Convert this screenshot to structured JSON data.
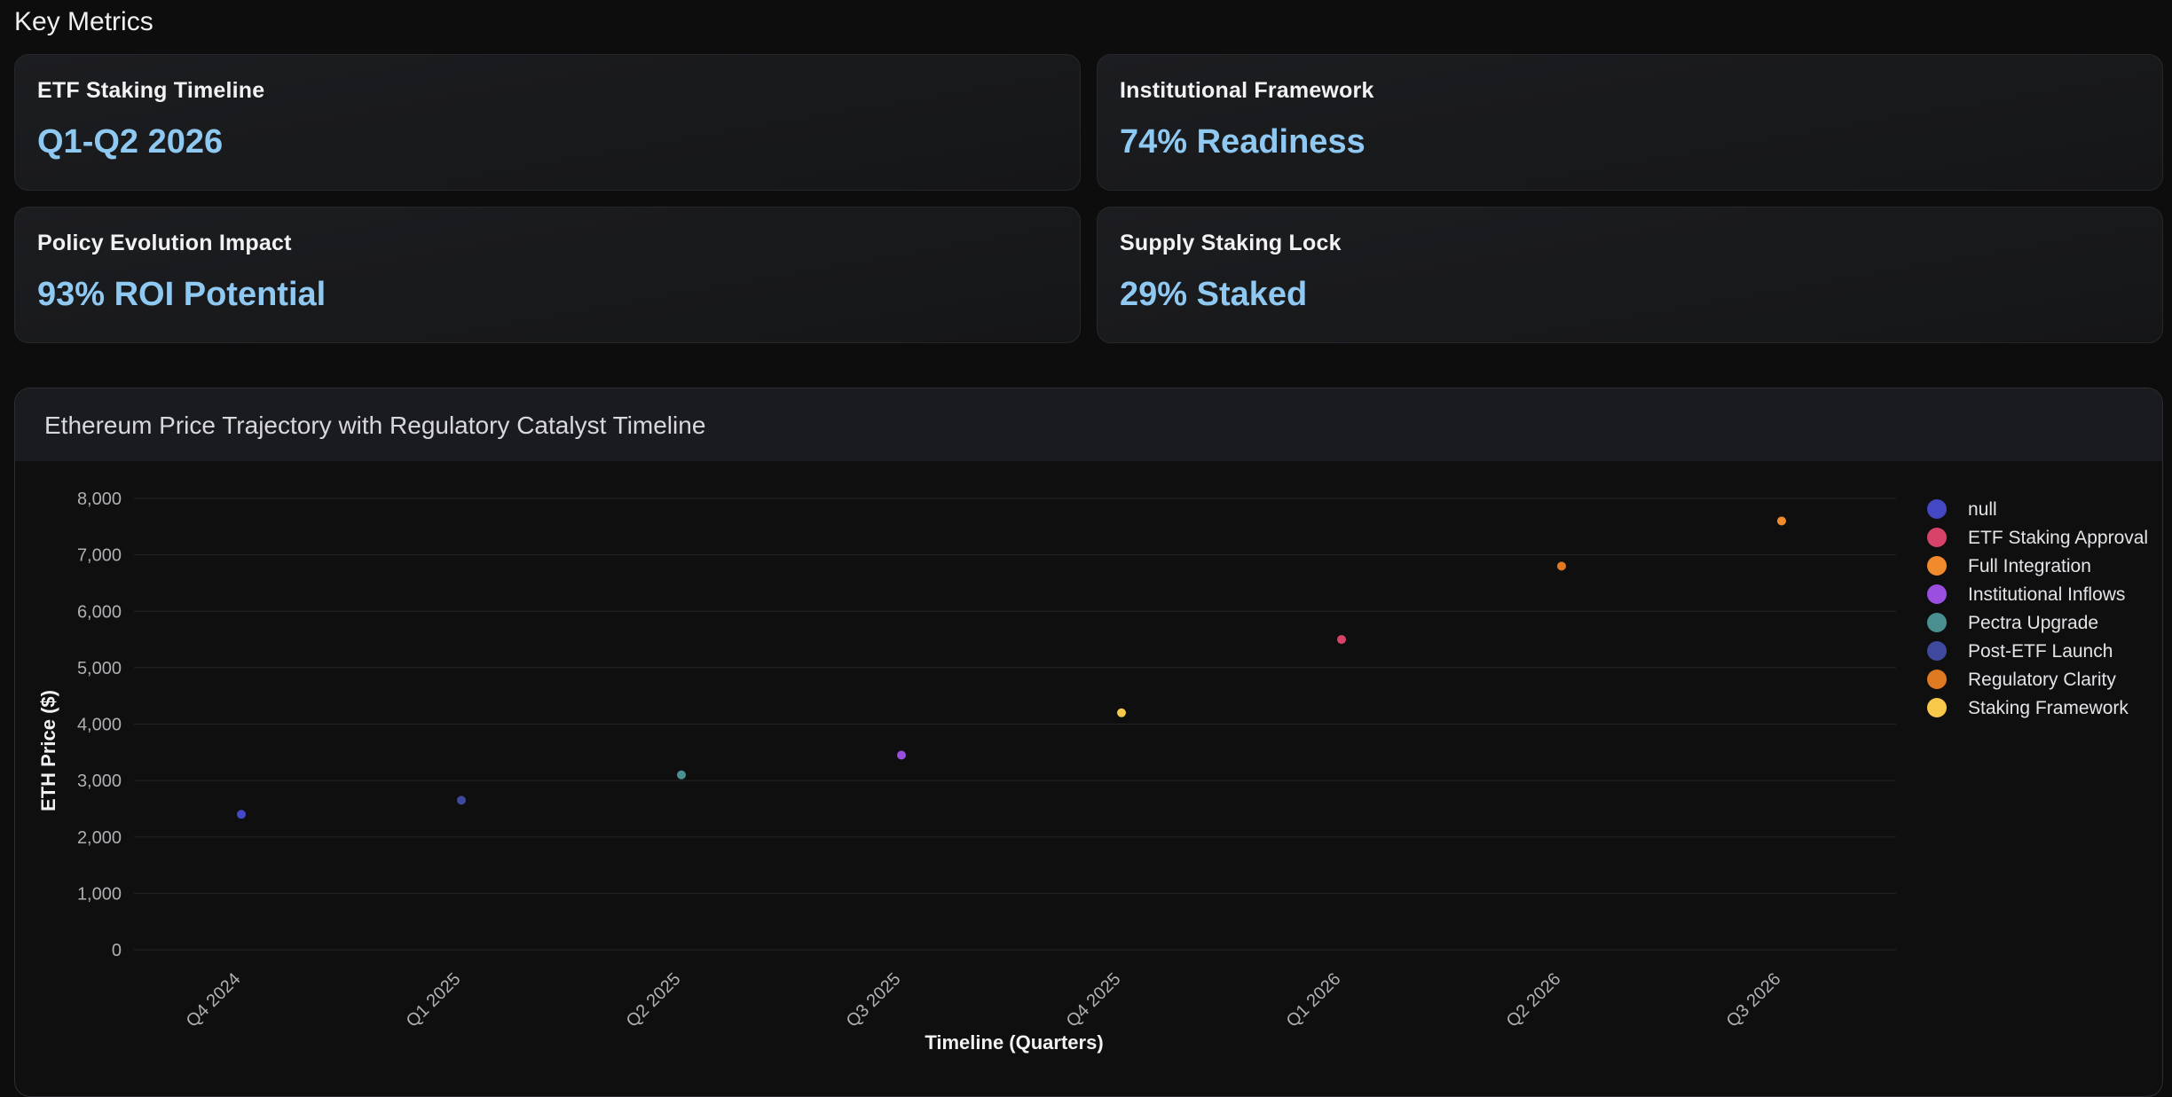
{
  "section_title": "Key Metrics",
  "metrics": [
    {
      "label": "ETF Staking Timeline",
      "value": "Q1-Q2 2026"
    },
    {
      "label": "Institutional Framework",
      "value": "74% Readiness"
    },
    {
      "label": "Policy Evolution Impact",
      "value": "93% ROI Potential"
    },
    {
      "label": "Supply Staking Lock",
      "value": "29% Staked"
    }
  ],
  "chart_title": "Ethereum Price Trajectory with Regulatory Catalyst Timeline",
  "chart_data": {
    "type": "scatter",
    "xlabel": "Timeline (Quarters)",
    "ylabel": "ETH Price ($)",
    "categories": [
      "Q4 2024",
      "Q1 2025",
      "Q2 2025",
      "Q3 2025",
      "Q4 2025",
      "Q1 2026",
      "Q2 2026",
      "Q3 2026"
    ],
    "ylim": [
      0,
      8000
    ],
    "yticks": [
      0,
      1000,
      2000,
      3000,
      4000,
      5000,
      6000,
      7000,
      8000
    ],
    "ytick_labels": [
      "0",
      "1,000",
      "2,000",
      "3,000",
      "4,000",
      "5,000",
      "6,000",
      "7,000",
      "8,000"
    ],
    "grid": true,
    "legend_position": "top-right",
    "series": [
      {
        "name": "null",
        "color": "#4548c4",
        "points": [
          {
            "x": "Q4 2024",
            "y": 2400
          }
        ]
      },
      {
        "name": "ETF Staking Approval",
        "color": "#d8436a",
        "points": [
          {
            "x": "Q1 2026",
            "y": 5500
          }
        ]
      },
      {
        "name": "Full Integration",
        "color": "#f08a2c",
        "points": [
          {
            "x": "Q3 2026",
            "y": 7600
          }
        ]
      },
      {
        "name": "Institutional Inflows",
        "color": "#9a4fe0",
        "points": [
          {
            "x": "Q3 2025",
            "y": 3450
          }
        ]
      },
      {
        "name": "Pectra Upgrade",
        "color": "#4a9090",
        "points": [
          {
            "x": "Q2 2025",
            "y": 3100
          }
        ]
      },
      {
        "name": "Post-ETF Launch",
        "color": "#3f4a9e",
        "points": [
          {
            "x": "Q1 2025",
            "y": 2650
          }
        ]
      },
      {
        "name": "Regulatory Clarity",
        "color": "#e07a22",
        "points": [
          {
            "x": "Q2 2026",
            "y": 6800
          }
        ]
      },
      {
        "name": "Staking Framework",
        "color": "#f8c84a",
        "points": [
          {
            "x": "Q4 2025",
            "y": 4200
          }
        ]
      }
    ]
  }
}
